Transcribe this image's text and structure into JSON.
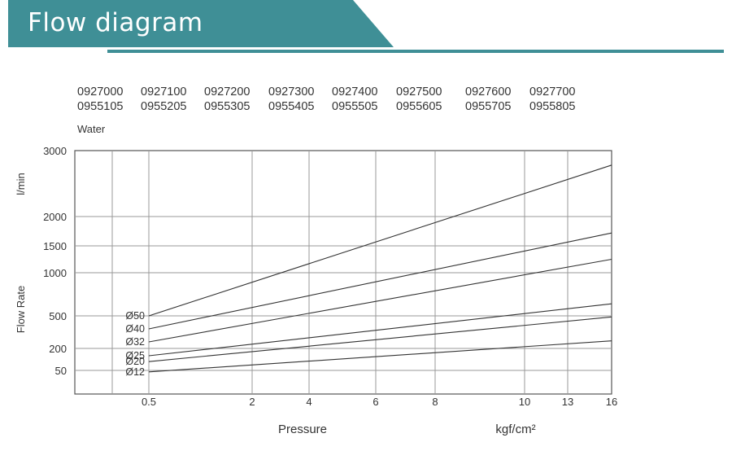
{
  "header": {
    "title": "Flow diagram",
    "colors": {
      "banner": "#3f8f96",
      "underline": "#3f8f96"
    }
  },
  "models": {
    "row1": [
      "0927000",
      "0927100",
      "0927200",
      "0927300",
      "0927400",
      "0927500",
      "0927600",
      "0927700"
    ],
    "row2": [
      "0955105",
      "0955205",
      "0955305",
      "0955405",
      "0955505",
      "0955605",
      "0955705",
      "0955805"
    ]
  },
  "medium_label": "Water",
  "chart_data": {
    "type": "line",
    "xlabel": "Pressure",
    "xunit": "kgf/cm²",
    "ylabel": "Flow Rate",
    "yunit": "l/min",
    "x_ticks": [
      0.5,
      2,
      4,
      6,
      8,
      10,
      13,
      16
    ],
    "x_tick_labels": [
      "0.5",
      "2",
      "4",
      "6",
      "8",
      "10",
      "13",
      "16"
    ],
    "y_ticks": [
      50,
      200,
      500,
      1000,
      1500,
      2000,
      3000
    ],
    "y_tick_labels": [
      "50",
      "200",
      "500",
      "1000",
      "1500",
      "2000",
      "3000"
    ],
    "x_scale": "nonlinear",
    "y_scale": "nonlinear",
    "grid": true,
    "series": [
      {
        "name": "Ø50",
        "x": [
          0.5,
          16
        ],
        "y": [
          500,
          2780
        ]
      },
      {
        "name": "Ø40",
        "x": [
          0.5,
          16
        ],
        "y": [
          380,
          1720
        ]
      },
      {
        "name": "Ø32",
        "x": [
          0.5,
          16
        ],
        "y": [
          260,
          1250
        ]
      },
      {
        "name": "Ø25",
        "x": [
          0.5,
          16
        ],
        "y": [
          150,
          640
        ]
      },
      {
        "name": "Ø20",
        "x": [
          0.5,
          16
        ],
        "y": [
          110,
          490
        ]
      },
      {
        "name": "Ø12",
        "x": [
          0.5,
          16
        ],
        "y": [
          40,
          270
        ]
      }
    ]
  }
}
